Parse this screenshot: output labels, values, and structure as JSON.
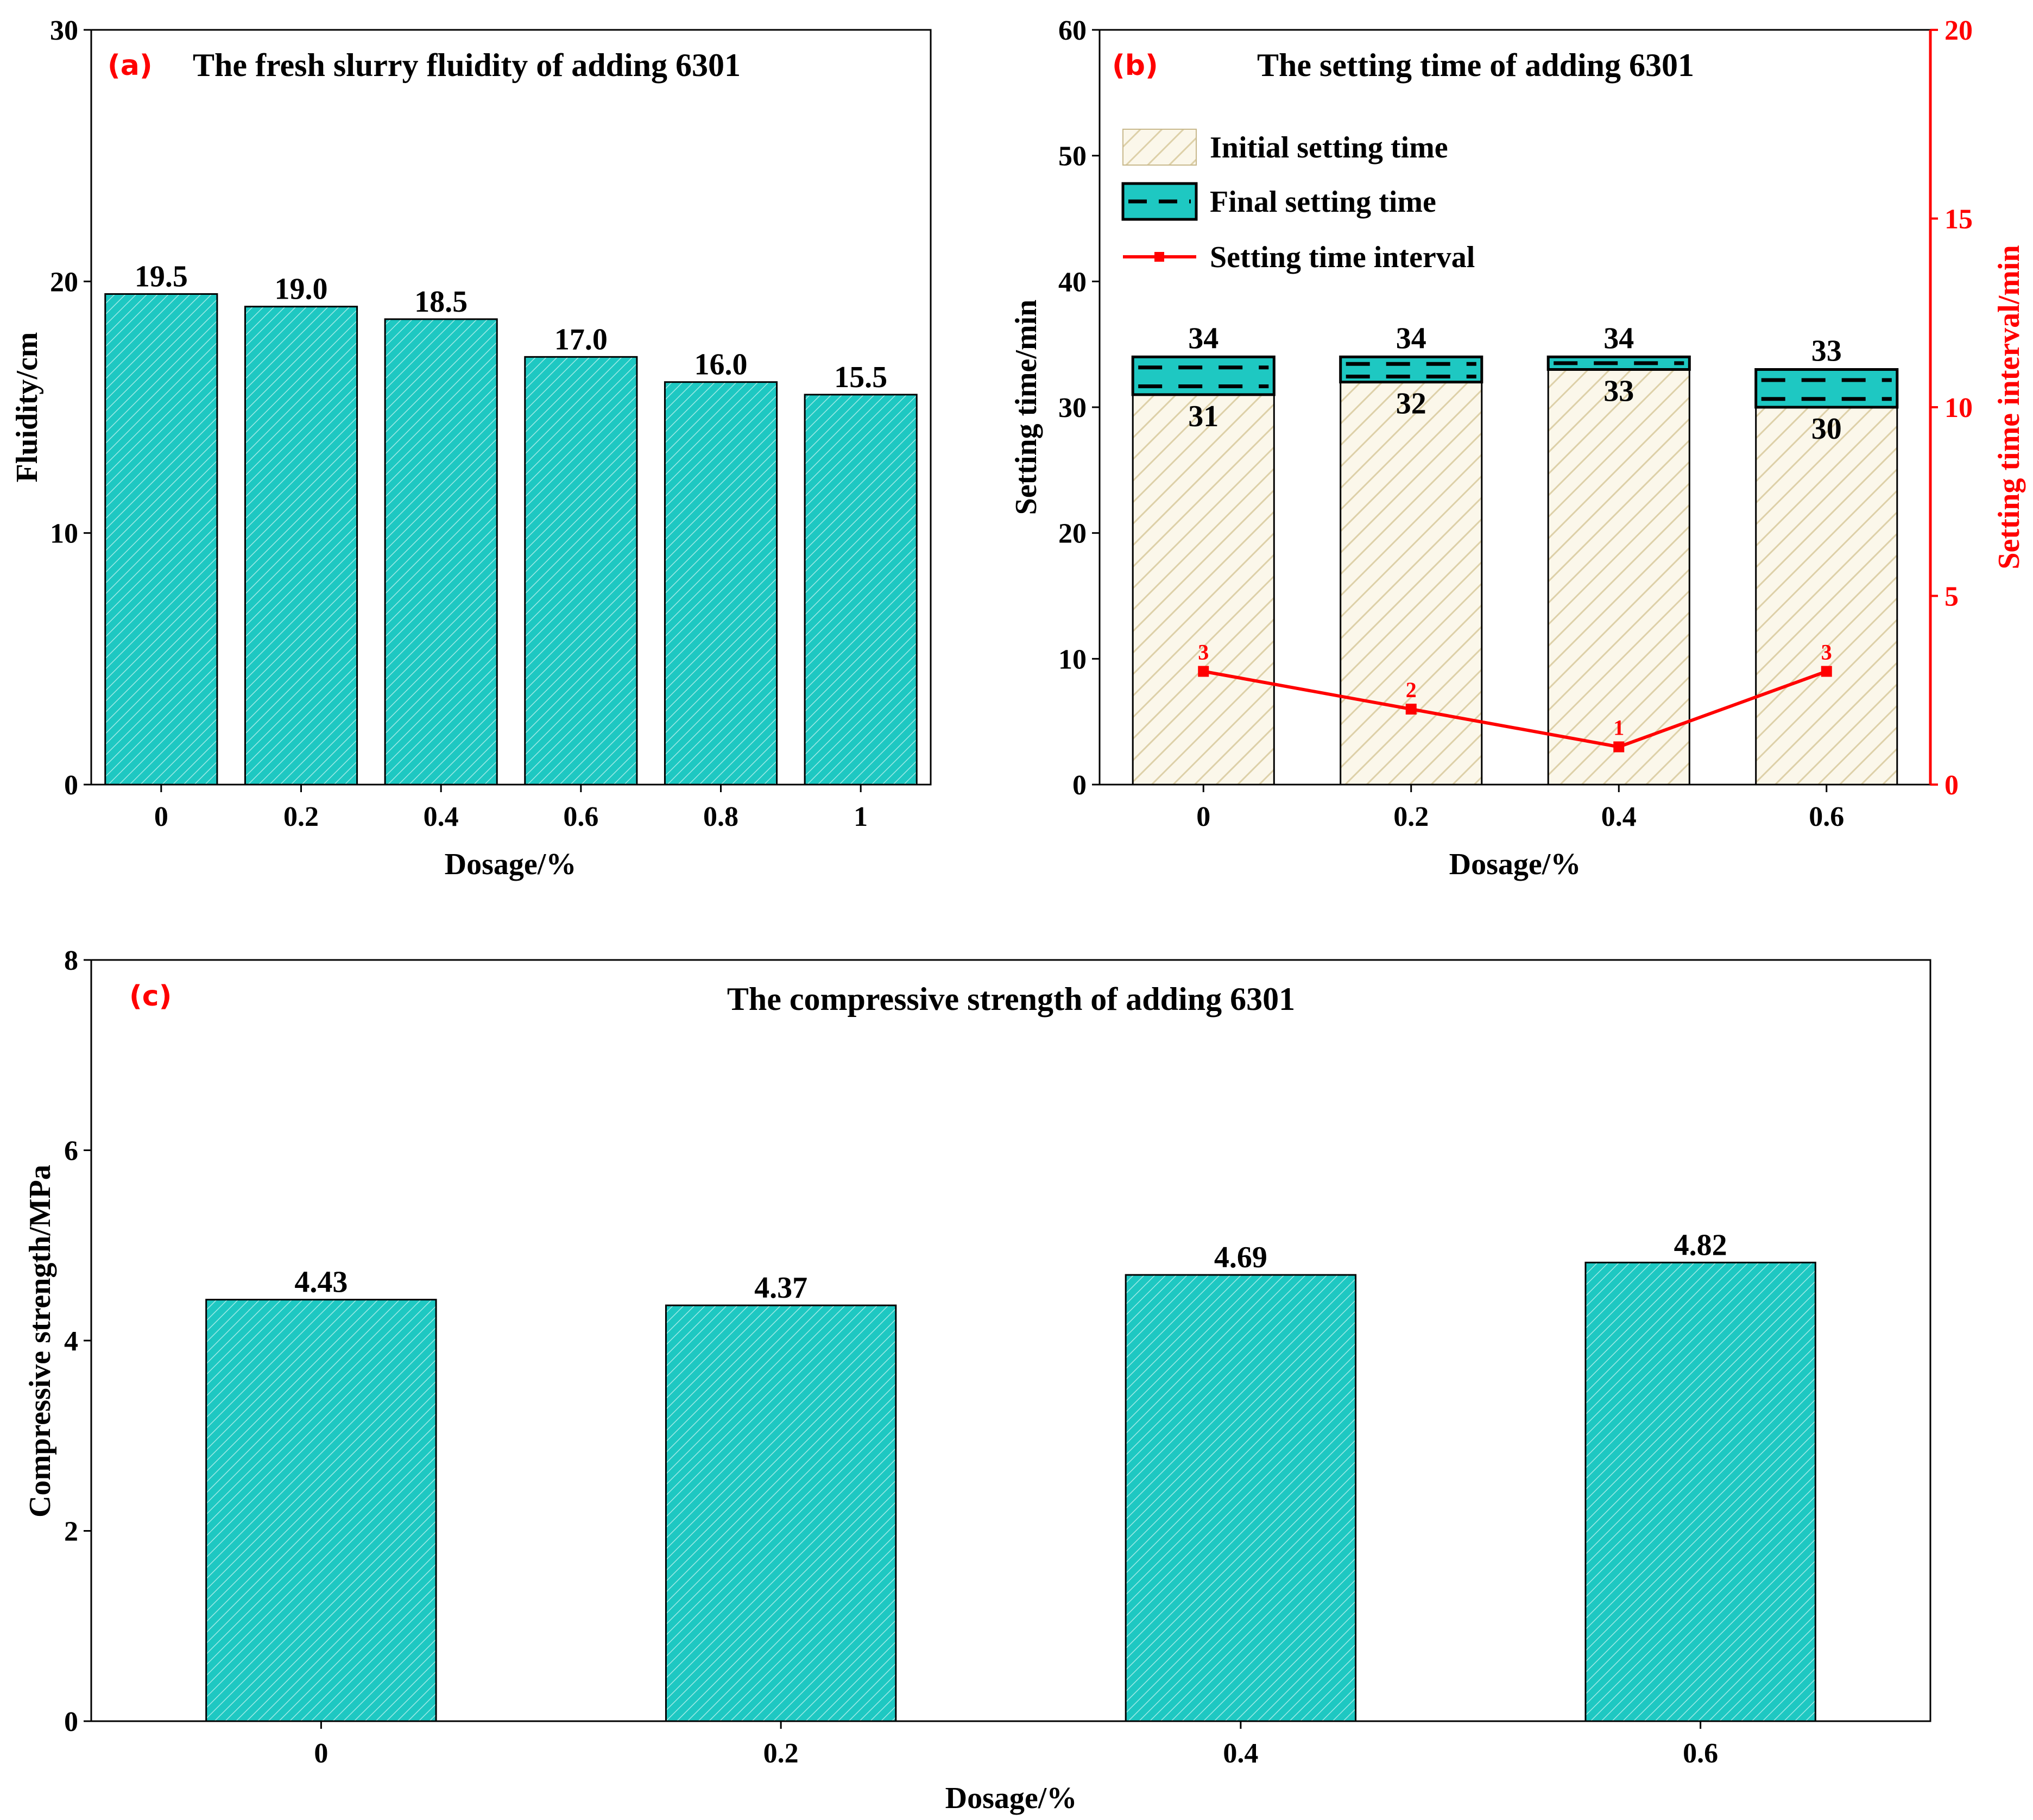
{
  "colors": {
    "teal": "#1ec8c2",
    "hatch": "#d9c9a3",
    "red": "#ff0000",
    "black": "#000000"
  },
  "chart_data": [
    {
      "id": "a",
      "type": "bar",
      "tag": "(a)",
      "title": "The fresh slurry fluidity of adding 6301",
      "xlabel": "Dosage/%",
      "ylabel": "Fluidity/cm",
      "ylim": [
        0,
        30
      ],
      "yticks": [
        "0",
        "10",
        "20",
        "30"
      ],
      "categories": [
        "0",
        "0.2",
        "0.4",
        "0.6",
        "0.8",
        "1"
      ],
      "values": [
        19.5,
        19.0,
        18.5,
        17.0,
        16.0,
        15.5
      ],
      "labels": [
        "19.5",
        "19.0",
        "18.5",
        "17.0",
        "16.0",
        "15.5"
      ]
    },
    {
      "id": "b",
      "type": "bar",
      "tag": "(b)",
      "title": "The setting time of adding 6301",
      "xlabel": "Dosage/%",
      "ylabel": "Setting time/min",
      "ylabel_right": "Setting time interval/min",
      "ylim": [
        0,
        60
      ],
      "ylim_right": [
        0,
        20
      ],
      "yticks": [
        "0",
        "10",
        "20",
        "30",
        "40",
        "50",
        "60"
      ],
      "yticks_right": [
        "0",
        "5",
        "10",
        "15",
        "20"
      ],
      "categories": [
        "0",
        "0.2",
        "0.4",
        "0.6"
      ],
      "legend": [
        "Initial setting time",
        "Final setting time",
        "Setting time interval"
      ],
      "legend_position": "top-left",
      "series": [
        {
          "name": "Initial setting time",
          "values": [
            31,
            32,
            33,
            30
          ],
          "labels": [
            "31",
            "32",
            "33",
            "30"
          ]
        },
        {
          "name": "Final setting time",
          "values": [
            34,
            34,
            34,
            33
          ],
          "labels": [
            "34",
            "34",
            "34",
            "33"
          ]
        },
        {
          "name": "Setting time interval",
          "axis": "right",
          "values": [
            3,
            2,
            1,
            3
          ],
          "labels": [
            "3",
            "2",
            "1",
            "3"
          ]
        }
      ]
    },
    {
      "id": "c",
      "type": "bar",
      "tag": "(c)",
      "title": "The compressive strength of adding 6301",
      "xlabel": "Dosage/%",
      "ylabel": "Compressive strength/MPa",
      "ylim": [
        0,
        8
      ],
      "yticks": [
        "0",
        "2",
        "4",
        "6",
        "8"
      ],
      "categories": [
        "0",
        "0.2",
        "0.4",
        "0.6"
      ],
      "values": [
        4.43,
        4.37,
        4.69,
        4.82
      ],
      "labels": [
        "4.43",
        "4.37",
        "4.69",
        "4.82"
      ]
    }
  ]
}
